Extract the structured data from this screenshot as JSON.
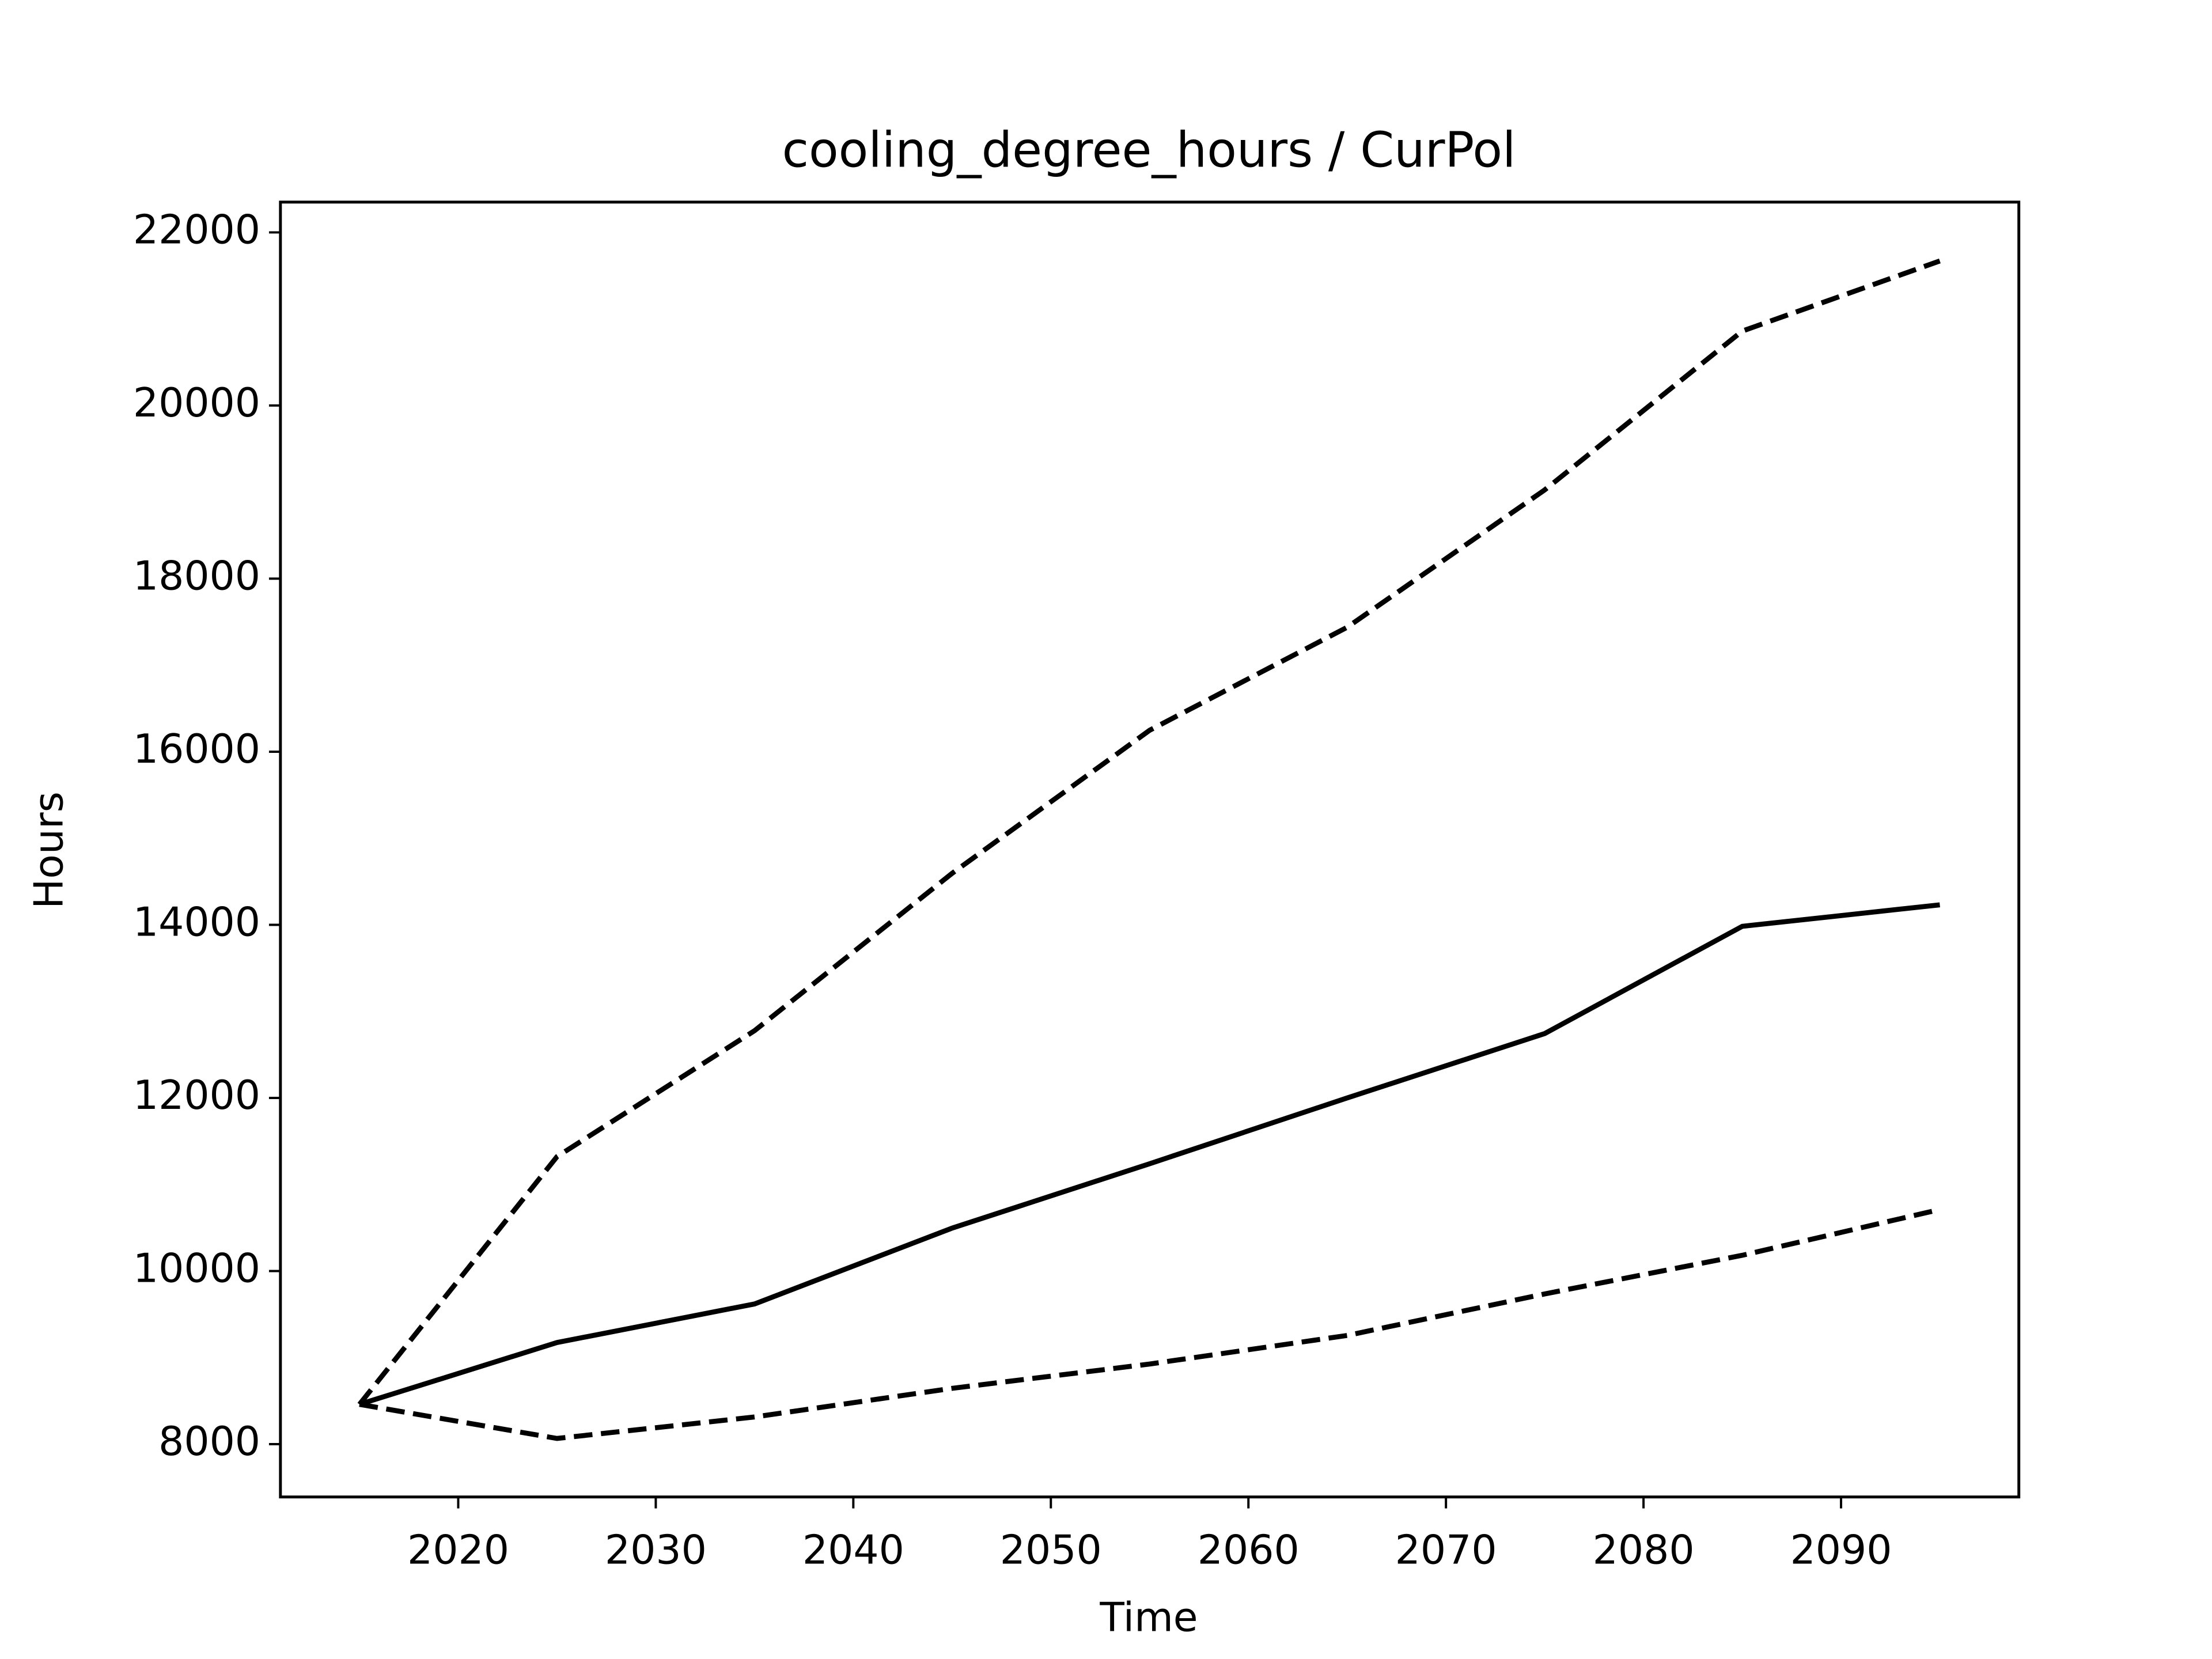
{
  "chart_data": {
    "type": "line",
    "title": "cooling_degree_hours / CurPol",
    "x_label": "Time",
    "y_label": "Hours",
    "x": [
      2015,
      2025,
      2035,
      2045,
      2055,
      2065,
      2075,
      2085,
      2095
    ],
    "series": [
      {
        "color": "#000000",
        "style": "solid",
        "values": [
          8460,
          9174,
          9620,
          10496,
          11240,
          12000,
          12744,
          13983,
          14231
        ]
      },
      {
        "color": "#000000",
        "style": "dashed",
        "values": [
          8460,
          11322,
          12777,
          14595,
          16248,
          17438,
          19025,
          20860,
          21670
        ]
      },
      {
        "color": "#000000",
        "style": "dashed",
        "values": [
          8460,
          8066,
          8314,
          8645,
          8926,
          9256,
          9736,
          10182,
          10711
        ]
      }
    ],
    "xlim": [
      2011,
      2099
    ],
    "xticks": [
      2020,
      2030,
      2040,
      2050,
      2060,
      2070,
      2080,
      2090
    ],
    "ylim": [
      7390,
      22350
    ],
    "yticks": [
      8000,
      10000,
      12000,
      14000,
      16000,
      18000,
      20000,
      22000
    ],
    "grid": false
  }
}
